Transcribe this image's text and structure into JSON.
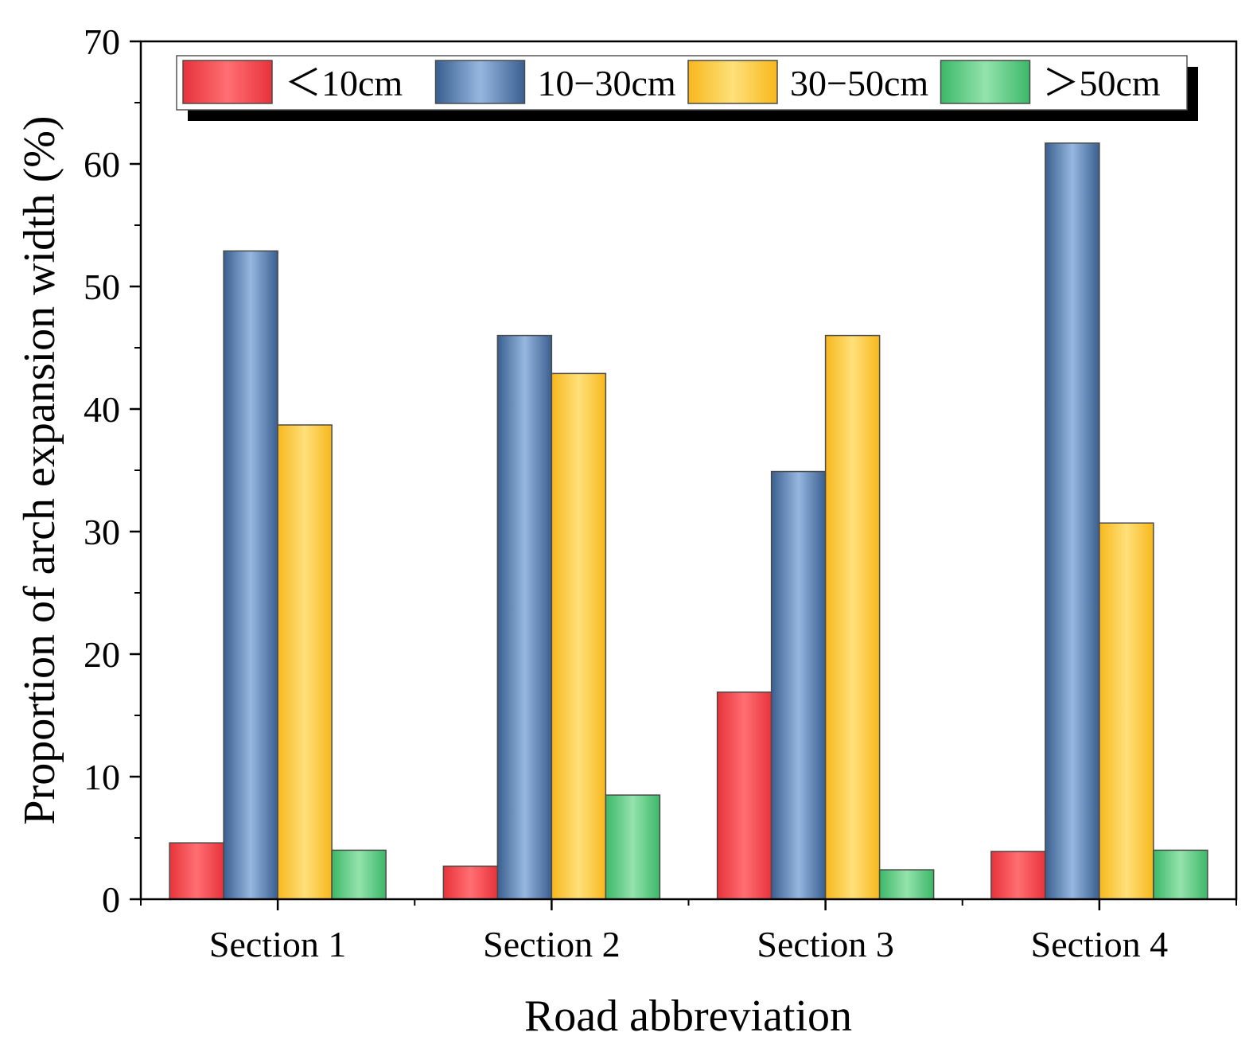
{
  "chart_data": {
    "type": "bar",
    "title": "",
    "xlabel": "Road abbreviation",
    "ylabel": "Proportion of arch expansion width (%)",
    "ylim": [
      0,
      70
    ],
    "yticks": [
      0,
      10,
      20,
      30,
      40,
      50,
      60,
      70
    ],
    "ytick_labels": [
      "0",
      "10",
      "20",
      "30",
      "40",
      "50",
      "60",
      "70"
    ],
    "grid": false,
    "legend_position": "top",
    "categories": [
      "Section 1",
      "Section 2",
      "Section 3",
      "Section 4"
    ],
    "series": [
      {
        "name": "＜10cm",
        "values": [
          4.6,
          2.7,
          16.9,
          3.9
        ],
        "color": "#e8323a",
        "light": "#ff6f73"
      },
      {
        "name": "10−30cm",
        "values": [
          52.9,
          46.0,
          34.9,
          61.7
        ],
        "color": "#3a5f8f",
        "light": "#96b7e0"
      },
      {
        "name": "30−50cm",
        "values": [
          38.7,
          42.9,
          46.0,
          30.7
        ],
        "color": "#f7b81c",
        "light": "#ffe07a"
      },
      {
        "name": "＞50cm",
        "values": [
          4.0,
          8.5,
          2.4,
          4.0
        ],
        "color": "#3cb868",
        "light": "#94e3ad"
      }
    ]
  }
}
